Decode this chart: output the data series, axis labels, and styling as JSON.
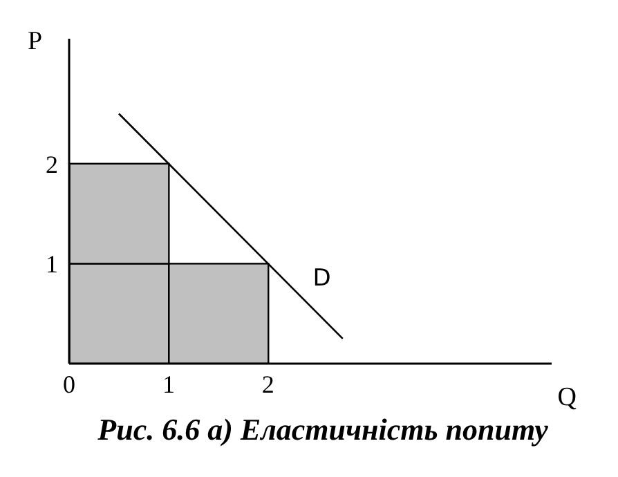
{
  "chart_data": {
    "type": "bar",
    "title": "Рис. 6.6 а) Еластичність попиту",
    "xlabel": "Q",
    "ylabel": "P",
    "stacked": true,
    "legend": false,
    "grid": false,
    "xlim": [
      0,
      4.85
    ],
    "ylim": [
      0,
      3.25
    ],
    "xticks": [
      0,
      1,
      2
    ],
    "yticks": [
      1,
      2
    ],
    "series": [
      {
        "x": [
          0.5,
          1.5
        ],
        "values": [
          1,
          1
        ],
        "color": "#c0c0c0"
      },
      {
        "x": [
          0.5
        ],
        "values": [
          1
        ],
        "color": "#c0c0c0"
      },
      {
        "type": "line",
        "x": [
          0.5,
          2.75
        ],
        "values": [
          2.5,
          0.25
        ],
        "color": "#000000",
        "marker": "none"
      }
    ],
    "annotations": [
      "D"
    ]
  }
}
